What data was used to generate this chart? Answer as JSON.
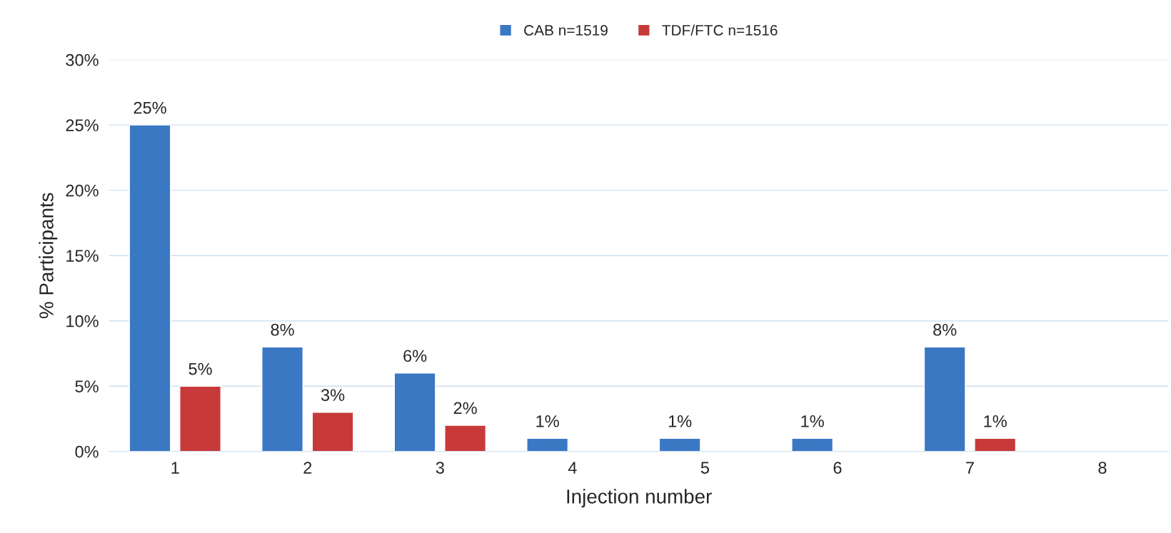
{
  "chart_data": {
    "type": "bar",
    "xlabel": "Injection number",
    "ylabel": "% Participants",
    "categories": [
      "1",
      "2",
      "3",
      "4",
      "5",
      "6",
      "7",
      "8"
    ],
    "series": [
      {
        "name": "CAB n=1519",
        "color": "#3a78c4",
        "values": [
          25,
          8,
          6,
          1,
          1,
          1,
          8,
          null
        ],
        "value_labels": [
          "25%",
          "8%",
          "6%",
          "1%",
          "1%",
          "1%",
          "8%",
          null
        ]
      },
      {
        "name": "TDF/FTC n=1516",
        "color": "#c83a3a",
        "values": [
          5,
          3,
          2,
          null,
          null,
          null,
          1,
          null
        ],
        "value_labels": [
          "5%",
          "3%",
          "2%",
          null,
          null,
          null,
          "1%",
          null
        ]
      }
    ],
    "ylim": [
      0,
      30
    ],
    "yticks": [
      {
        "value": 0,
        "label": "0%"
      },
      {
        "value": 5,
        "label": "5%"
      },
      {
        "value": 10,
        "label": "10%"
      },
      {
        "value": 15,
        "label": "15%"
      },
      {
        "value": 20,
        "label": "20%"
      },
      {
        "value": 25,
        "label": "25%"
      },
      {
        "value": 30,
        "label": "30%"
      }
    ],
    "grid": "y",
    "legend": "top"
  }
}
